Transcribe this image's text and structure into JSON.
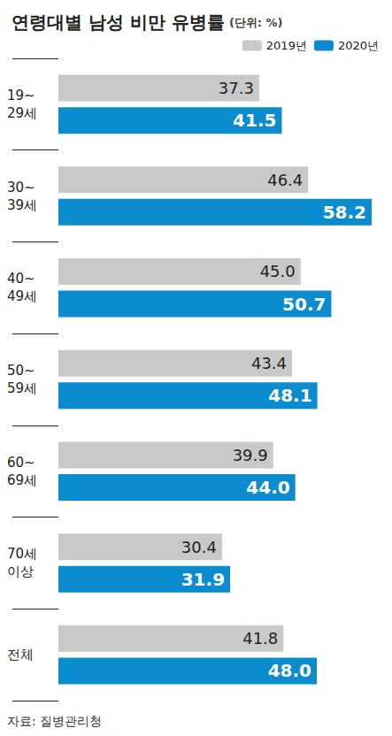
{
  "chart_data": {
    "type": "bar",
    "title": "연령대별 남성 비만 유병률",
    "subtitle": "(단위: %)",
    "annotations": [
      "자료: 질병관리청"
    ],
    "orientation": "horizontal",
    "categories": [
      "19~29세",
      "30~39세",
      "40~49세",
      "50~59세",
      "60~69세",
      "70세 이상",
      "전체"
    ],
    "series": [
      {
        "name": "2019년",
        "color": "#c9c9c9",
        "values": [
          37.3,
          46.4,
          45.0,
          43.4,
          39.9,
          30.4,
          41.8
        ]
      },
      {
        "name": "2020년",
        "color": "#0a8ccf",
        "values": [
          41.5,
          58.2,
          50.7,
          48.1,
          44.0,
          31.9,
          48.0
        ]
      }
    ],
    "value_labels": [
      [
        "37.3",
        "46.4",
        "45.0",
        "43.4",
        "39.9",
        "30.4",
        "41.8"
      ],
      [
        "41.5",
        "58.2",
        "50.7",
        "48.1",
        "44.0",
        "31.9",
        "48.0"
      ]
    ],
    "xlim": [
      0,
      60
    ],
    "data_labels": true,
    "tick_labels": "y",
    "grid": false,
    "legend": "top-right"
  }
}
